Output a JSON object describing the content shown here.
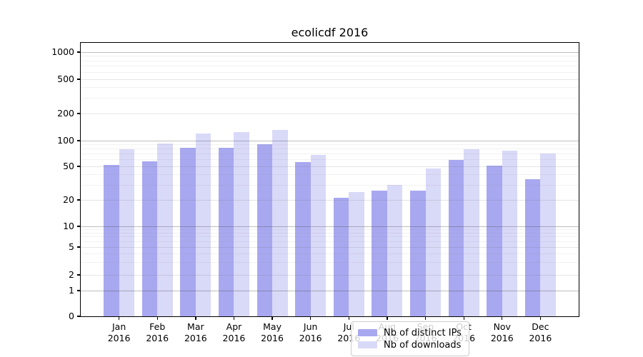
{
  "figure": {
    "background": "#ffffff"
  },
  "chart_data": {
    "type": "bar",
    "title": "ecolicdf 2016",
    "xlabel": "",
    "ylabel": "",
    "yscale": "symlog-like (0 then log decades)",
    "grid": true,
    "legend_position": "lower center",
    "year": "2016",
    "categories": [
      "Jan",
      "Feb",
      "Mar",
      "Apr",
      "May",
      "Jun",
      "Jul",
      "Aug",
      "Sep",
      "Oct",
      "Nov",
      "Dec"
    ],
    "yticks": [
      0,
      1,
      2,
      5,
      10,
      20,
      50,
      100,
      200,
      500,
      1000
    ],
    "ylim": [
      0,
      1270
    ],
    "series": [
      {
        "name": "Nb of distinct IPs",
        "color": "#a8a8f0",
        "values": [
          52,
          57,
          83,
          83,
          90,
          56,
          21,
          26,
          26,
          59,
          51,
          35
        ]
      },
      {
        "name": "Nb of downloads",
        "color": "#d9d9f8",
        "values": [
          79,
          93,
          120,
          125,
          132,
          68,
          25,
          30,
          47,
          79,
          76,
          71
        ]
      }
    ]
  }
}
